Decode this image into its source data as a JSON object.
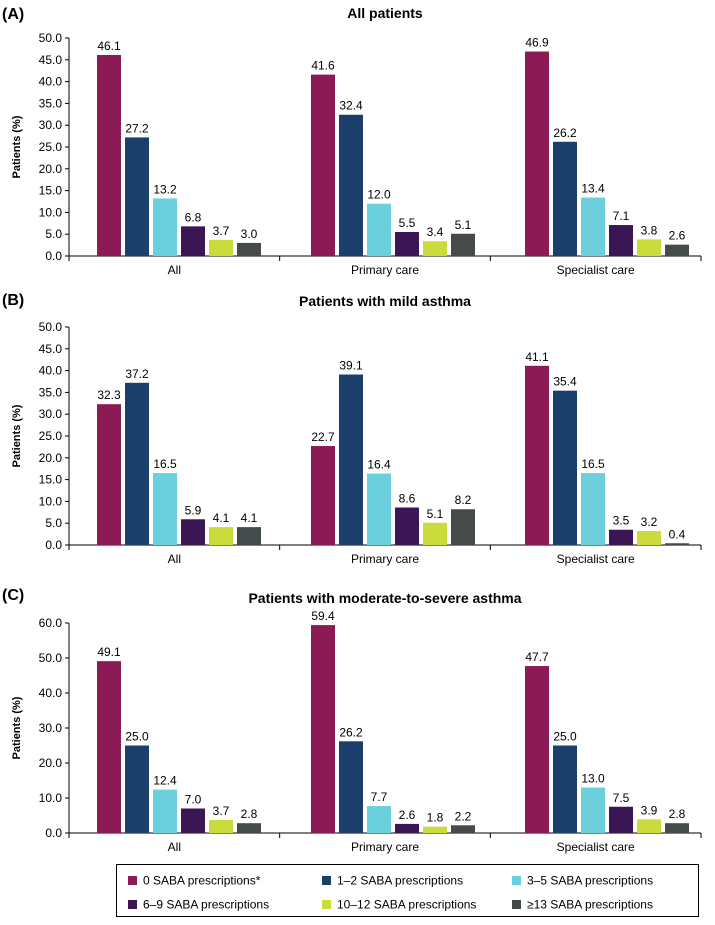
{
  "colors": [
    "#8b1a55",
    "#1b3f6b",
    "#6ccfdc",
    "#3b1654",
    "#c9dc3c",
    "#454a4b"
  ],
  "legend": [
    "0 SABA prescriptions*",
    "1–2 SABA prescriptions",
    "3–5 SABA prescriptions",
    "6–9 SABA prescriptions",
    "10–12 SABA prescriptions",
    "≥13 SABA prescriptions"
  ],
  "chart_data": [
    {
      "type": "bar",
      "panel_label": "(A)",
      "title": "All patients",
      "ylabel": "Patients (%)",
      "xlabel": "",
      "ylim": [
        0,
        50
      ],
      "yticks": [
        "0.0",
        "5.0",
        "10.0",
        "15.0",
        "20.0",
        "25.0",
        "30.0",
        "35.0",
        "40.0",
        "45.0",
        "50.0"
      ],
      "categories": [
        "All",
        "Primary care",
        "Specialist care"
      ],
      "series": [
        {
          "name": "0 SABA prescriptions*",
          "values": [
            46.1,
            41.6,
            46.9
          ],
          "labels": [
            "46.1",
            "41.6",
            "46.9"
          ]
        },
        {
          "name": "1–2 SABA prescriptions",
          "values": [
            27.2,
            32.4,
            26.2
          ],
          "labels": [
            "27.2",
            "32.4",
            "26.2"
          ]
        },
        {
          "name": "3–5 SABA prescriptions",
          "values": [
            13.2,
            12.0,
            13.4
          ],
          "labels": [
            "13.2",
            "12.0",
            "13.4"
          ]
        },
        {
          "name": "6–9 SABA prescriptions",
          "values": [
            6.8,
            5.5,
            7.1
          ],
          "labels": [
            "6.8",
            "5.5",
            "7.1"
          ]
        },
        {
          "name": "10–12 SABA prescriptions",
          "values": [
            3.7,
            3.4,
            3.8
          ],
          "labels": [
            "3.7",
            "3.4",
            "3.8"
          ]
        },
        {
          "name": "≥13 SABA prescriptions",
          "values": [
            3.0,
            5.1,
            2.6
          ],
          "labels": [
            "3.0",
            "5.1",
            "2.6"
          ]
        }
      ]
    },
    {
      "type": "bar",
      "panel_label": "(B)",
      "title": "Patients with mild asthma",
      "ylabel": "Patients (%)",
      "xlabel": "",
      "ylim": [
        0,
        50
      ],
      "yticks": [
        "0.0",
        "5.0",
        "10.0",
        "15.0",
        "20.0",
        "25.0",
        "30.0",
        "35.0",
        "40.0",
        "45.0",
        "50.0"
      ],
      "categories": [
        "All",
        "Primary care",
        "Specialist care"
      ],
      "series": [
        {
          "name": "0 SABA prescriptions*",
          "values": [
            32.3,
            22.7,
            41.1
          ],
          "labels": [
            "32.3",
            "22.7",
            "41.1"
          ]
        },
        {
          "name": "1–2 SABA prescriptions",
          "values": [
            37.2,
            39.1,
            35.4
          ],
          "labels": [
            "37.2",
            "39.1",
            "35.4"
          ]
        },
        {
          "name": "3–5 SABA prescriptions",
          "values": [
            16.5,
            16.4,
            16.5
          ],
          "labels": [
            "16.5",
            "16.4",
            "16.5"
          ]
        },
        {
          "name": "6–9 SABA prescriptions",
          "values": [
            5.9,
            8.6,
            3.5
          ],
          "labels": [
            "5.9",
            "8.6",
            "3.5"
          ]
        },
        {
          "name": "10–12 SABA prescriptions",
          "values": [
            4.1,
            5.1,
            3.2
          ],
          "labels": [
            "4.1",
            "5.1",
            "3.2"
          ]
        },
        {
          "name": "≥13 SABA prescriptions",
          "values": [
            4.1,
            8.2,
            0.4
          ],
          "labels": [
            "4.1",
            "8.2",
            "0.4"
          ]
        }
      ]
    },
    {
      "type": "bar",
      "panel_label": "(C)",
      "title": "Patients with moderate-to-severe asthma",
      "ylabel": "Patients (%)",
      "xlabel": "",
      "ylim": [
        0,
        60
      ],
      "yticks": [
        "0.0",
        "10.0",
        "20.0",
        "30.0",
        "40.0",
        "50.0",
        "60.0"
      ],
      "categories": [
        "All",
        "Primary care",
        "Specialist care"
      ],
      "series": [
        {
          "name": "0 SABA prescriptions*",
          "values": [
            49.1,
            59.4,
            47.7
          ],
          "labels": [
            "49.1",
            "59.4",
            "47.7"
          ]
        },
        {
          "name": "1–2 SABA prescriptions",
          "values": [
            25.0,
            26.2,
            25.0
          ],
          "labels": [
            "25.0",
            "26.2",
            "25.0"
          ]
        },
        {
          "name": "3–5 SABA prescriptions",
          "values": [
            12.4,
            7.7,
            13.0
          ],
          "labels": [
            "12.4",
            "7.7",
            "13.0"
          ]
        },
        {
          "name": "6–9 SABA prescriptions",
          "values": [
            7.0,
            2.6,
            7.5
          ],
          "labels": [
            "7.0",
            "2.6",
            "7.5"
          ]
        },
        {
          "name": "10–12 SABA prescriptions",
          "values": [
            3.7,
            1.8,
            3.9
          ],
          "labels": [
            "3.7",
            "1.8",
            "3.9"
          ]
        },
        {
          "name": "≥13 SABA prescriptions",
          "values": [
            2.8,
            2.2,
            2.8
          ],
          "labels": [
            "2.8",
            "2.2",
            "2.8"
          ]
        }
      ]
    }
  ]
}
